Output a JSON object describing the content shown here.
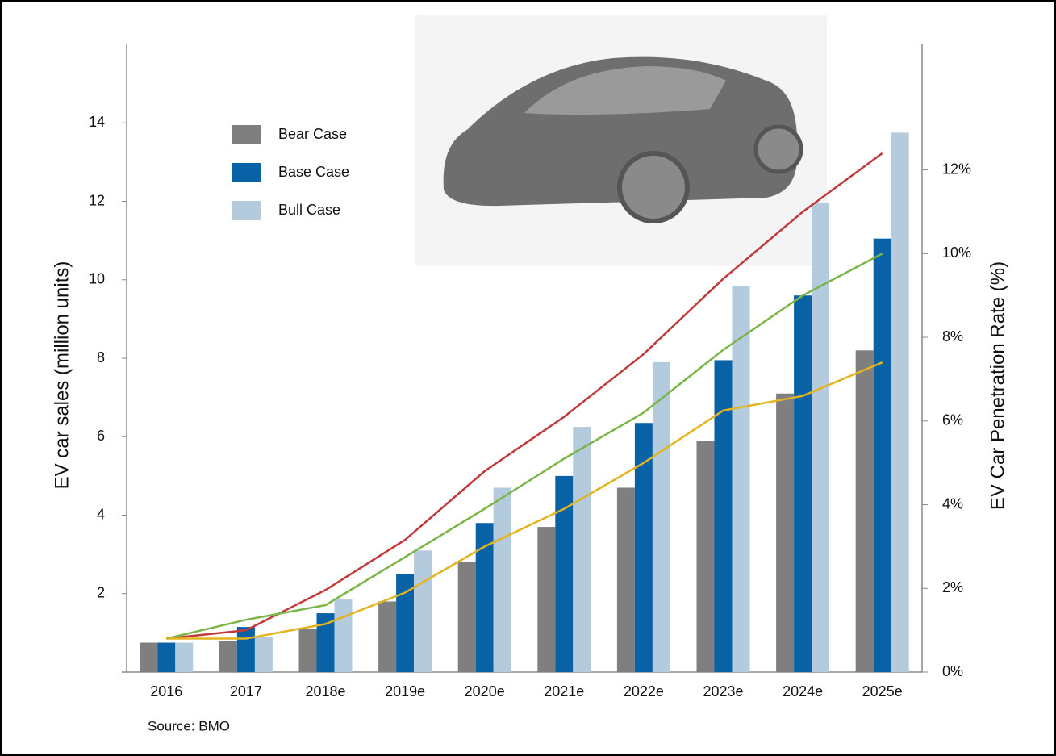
{
  "chart_data": {
    "type": "bar",
    "source": "Source:  BMO",
    "ylabel": "EV car sales (million units)",
    "y2label": "EV Car Penetration Rate (%)",
    "categories": [
      "2016",
      "2017",
      "2018e",
      "2019e",
      "2020e",
      "2021e",
      "2022e",
      "2023e",
      "2024e",
      "2025e"
    ],
    "ylim": [
      0,
      16
    ],
    "yticks": [
      2,
      4,
      6,
      8,
      10,
      12,
      14
    ],
    "y2lim": [
      0,
      15
    ],
    "y2ticks": [
      {
        "value": 0,
        "label": "0%"
      },
      {
        "value": 2,
        "label": "2%"
      },
      {
        "value": 4,
        "label": "4%"
      },
      {
        "value": 6,
        "label": "6%"
      },
      {
        "value": 8,
        "label": "8%"
      },
      {
        "value": 10,
        "label": "10%"
      },
      {
        "value": 12,
        "label": "12%"
      }
    ],
    "series": [
      {
        "name": "Bear Case",
        "type": "bar",
        "color": "#7f7f7f",
        "values": [
          0.75,
          0.8,
          1.1,
          1.8,
          2.8,
          3.7,
          4.7,
          5.9,
          7.1,
          8.2
        ]
      },
      {
        "name": "Base Case",
        "type": "bar",
        "color": "#0a62a6",
        "values": [
          0.75,
          1.15,
          1.5,
          2.5,
          3.8,
          5.0,
          6.35,
          7.95,
          9.6,
          11.05
        ]
      },
      {
        "name": "Bull Case",
        "type": "bar",
        "color": "#b4cadd",
        "values": [
          0.75,
          0.9,
          1.85,
          3.1,
          4.7,
          6.25,
          7.9,
          9.85,
          11.95,
          13.75
        ]
      },
      {
        "type": "line",
        "axis": "y2",
        "color": "#c2393a",
        "values": [
          0.8,
          1.0,
          1.96,
          3.16,
          4.8,
          6.1,
          7.6,
          9.4,
          11.0,
          12.4
        ]
      },
      {
        "type": "line",
        "axis": "y2",
        "color": "#7ab547",
        "values": [
          0.8,
          1.25,
          1.6,
          2.75,
          3.9,
          5.1,
          6.2,
          7.7,
          9.0,
          10.0
        ]
      },
      {
        "type": "line",
        "axis": "y2",
        "color": "#e3b41f",
        "values": [
          0.8,
          0.8,
          1.15,
          1.9,
          3.0,
          3.9,
          5.0,
          6.25,
          6.6,
          7.4
        ]
      }
    ]
  }
}
